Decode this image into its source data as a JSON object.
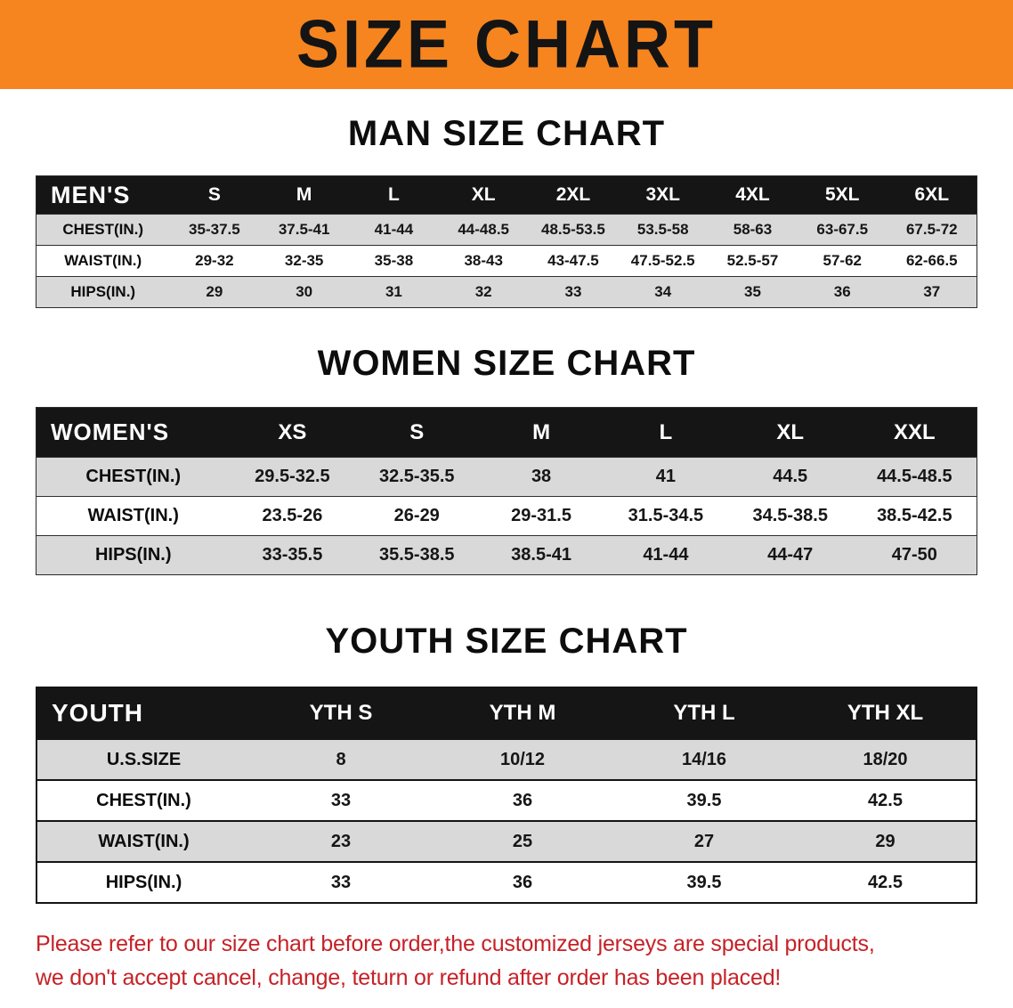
{
  "banner": {
    "title": "SIZE CHART"
  },
  "colors": {
    "banner_bg": "#F6851F",
    "header_bg": "#151515",
    "row_alt_bg": "#D9D9D9",
    "note_red": "#C62127"
  },
  "chart_data": [
    {
      "type": "table",
      "title": "MAN SIZE CHART",
      "columns": [
        "MEN'S",
        "S",
        "M",
        "L",
        "XL",
        "2XL",
        "3XL",
        "4XL",
        "5XL",
        "6XL"
      ],
      "rows": [
        [
          "CHEST(IN.)",
          "35-37.5",
          "37.5-41",
          "41-44",
          "44-48.5",
          "48.5-53.5",
          "53.5-58",
          "58-63",
          "63-67.5",
          "67.5-72"
        ],
        [
          "WAIST(IN.)",
          "29-32",
          "32-35",
          "35-38",
          "38-43",
          "43-47.5",
          "47.5-52.5",
          "52.5-57",
          "57-62",
          "62-66.5"
        ],
        [
          "HIPS(IN.)",
          "29",
          "30",
          "31",
          "32",
          "33",
          "34",
          "35",
          "36",
          "37"
        ]
      ]
    },
    {
      "type": "table",
      "title": "WOMEN SIZE CHART",
      "columns": [
        "WOMEN'S",
        "XS",
        "S",
        "M",
        "L",
        "XL",
        "XXL"
      ],
      "rows": [
        [
          "CHEST(IN.)",
          "29.5-32.5",
          "32.5-35.5",
          "38",
          "41",
          "44.5",
          "44.5-48.5"
        ],
        [
          "WAIST(IN.)",
          "23.5-26",
          "26-29",
          "29-31.5",
          "31.5-34.5",
          "34.5-38.5",
          "38.5-42.5"
        ],
        [
          "HIPS(IN.)",
          "33-35.5",
          "35.5-38.5",
          "38.5-41",
          "41-44",
          "44-47",
          "47-50"
        ]
      ]
    },
    {
      "type": "table",
      "title": "YOUTH SIZE CHART",
      "columns": [
        "YOUTH",
        "YTH S",
        "YTH M",
        "YTH L",
        "YTH XL"
      ],
      "rows": [
        [
          "U.S.SIZE",
          "8",
          "10/12",
          "14/16",
          "18/20"
        ],
        [
          "CHEST(IN.)",
          "33",
          "36",
          "39.5",
          "42.5"
        ],
        [
          "WAIST(IN.)",
          "23",
          "25",
          "27",
          "29"
        ],
        [
          "HIPS(IN.)",
          "33",
          "36",
          "39.5",
          "42.5"
        ]
      ]
    }
  ],
  "footer_note": {
    "lines": [
      "Please refer to our size chart before order,the customized jerseys are special products,",
      "we don't accept cancel, change, teturn or refund after order has been placed!"
    ]
  }
}
